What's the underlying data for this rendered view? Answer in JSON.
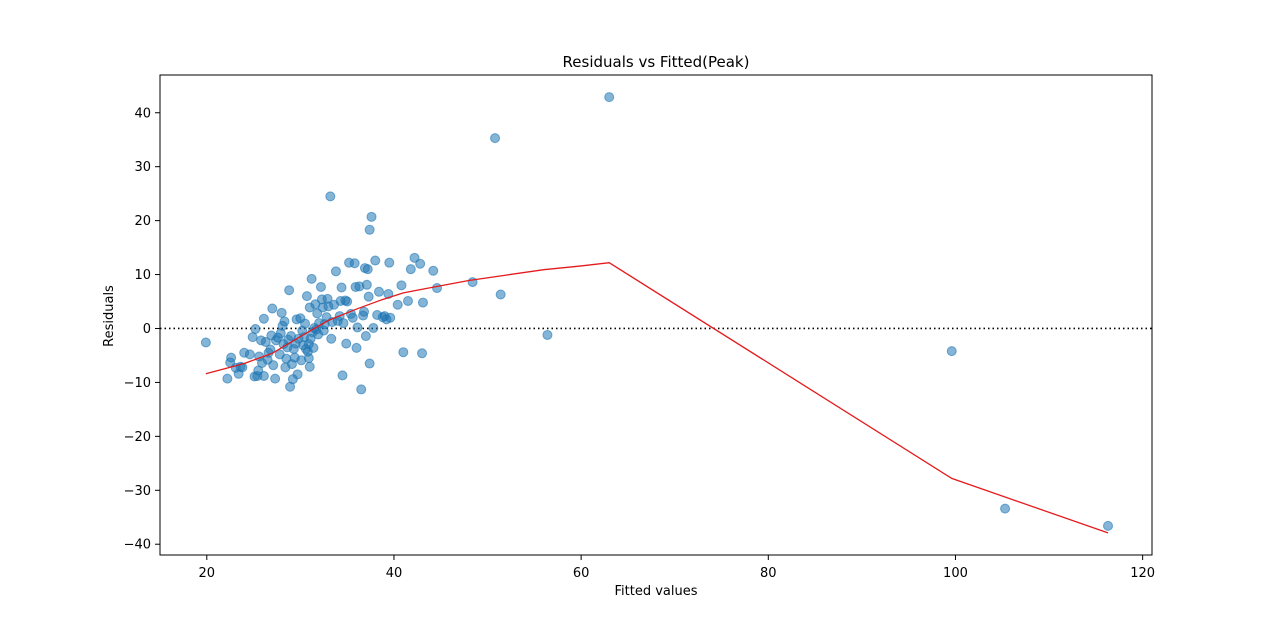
{
  "chart_data": {
    "type": "scatter",
    "title": "Residuals vs Fitted(Peak)",
    "xlabel": "Fitted values",
    "ylabel": "Residuals",
    "xlim": [
      15,
      121
    ],
    "ylim": [
      -42,
      47
    ],
    "xticks": [
      20,
      40,
      60,
      80,
      100,
      120
    ],
    "yticks": [
      -40,
      -30,
      -20,
      -10,
      0,
      10,
      20,
      30,
      40
    ],
    "grid": false,
    "reference_line": {
      "y": 0,
      "style": "dotted",
      "color": "#000000"
    },
    "colors": {
      "points": "#1f77b4",
      "smooth": "#e41a1c"
    },
    "points": [
      [
        19.9,
        -2.6
      ],
      [
        22.2,
        -9.3
      ],
      [
        22.6,
        -5.4
      ],
      [
        22.5,
        -6.3
      ],
      [
        23.1,
        -7.3
      ],
      [
        23.4,
        -8.4
      ],
      [
        23.6,
        -7.1
      ],
      [
        23.8,
        -7.2
      ],
      [
        24.0,
        -4.5
      ],
      [
        24.6,
        -4.8
      ],
      [
        24.9,
        -1.6
      ],
      [
        25.1,
        -8.9
      ],
      [
        25.2,
        -0.1
      ],
      [
        25.4,
        -8.8
      ],
      [
        25.5,
        -7.8
      ],
      [
        25.6,
        -5.2
      ],
      [
        25.8,
        -2.2
      ],
      [
        25.9,
        -6.4
      ],
      [
        26.1,
        -8.8
      ],
      [
        26.1,
        1.8
      ],
      [
        26.3,
        -2.5
      ],
      [
        26.5,
        -5.8
      ],
      [
        26.6,
        -4.5
      ],
      [
        26.8,
        -3.9
      ],
      [
        26.9,
        -1.3
      ],
      [
        27.0,
        3.7
      ],
      [
        27.1,
        -6.8
      ],
      [
        27.3,
        -9.3
      ],
      [
        27.4,
        -2.2
      ],
      [
        27.6,
        -1.7
      ],
      [
        27.8,
        -4.8
      ],
      [
        27.9,
        -0.9
      ],
      [
        28.0,
        2.9
      ],
      [
        28.1,
        0.5
      ],
      [
        28.2,
        -2.9
      ],
      [
        28.3,
        1.3
      ],
      [
        28.4,
        -7.2
      ],
      [
        28.5,
        -5.6
      ],
      [
        28.6,
        -3.5
      ],
      [
        28.7,
        -2.1
      ],
      [
        28.8,
        7.1
      ],
      [
        28.9,
        -10.8
      ],
      [
        29.0,
        -1.4
      ],
      [
        29.1,
        -6.6
      ],
      [
        29.2,
        -9.4
      ],
      [
        29.3,
        -3.8
      ],
      [
        29.4,
        -5.4
      ],
      [
        29.5,
        -2.8
      ],
      [
        29.6,
        1.7
      ],
      [
        29.7,
        -8.5
      ],
      [
        29.8,
        -1.9
      ],
      [
        30.0,
        1.9
      ],
      [
        30.1,
        -5.9
      ],
      [
        30.2,
        -0.4
      ],
      [
        30.3,
        -3.1
      ],
      [
        30.4,
        -1.6
      ],
      [
        30.5,
        0.9
      ],
      [
        30.6,
        -3.8
      ],
      [
        30.7,
        6.0
      ],
      [
        30.8,
        -4.3
      ],
      [
        30.9,
        -2.9
      ],
      [
        30.9,
        -5.5
      ],
      [
        31.0,
        -7.1
      ],
      [
        31.0,
        3.9
      ],
      [
        31.1,
        -1.9
      ],
      [
        31.2,
        9.2
      ],
      [
        31.3,
        -0.7
      ],
      [
        31.4,
        -3.6
      ],
      [
        31.5,
        0.1
      ],
      [
        31.6,
        4.5
      ],
      [
        31.7,
        -0.2
      ],
      [
        31.8,
        2.8
      ],
      [
        31.9,
        -1.1
      ],
      [
        32.0,
        1.0
      ],
      [
        32.2,
        7.7
      ],
      [
        32.3,
        5.4
      ],
      [
        32.4,
        3.9
      ],
      [
        32.5,
        -0.4
      ],
      [
        32.6,
        0.8
      ],
      [
        32.8,
        2.1
      ],
      [
        32.9,
        5.5
      ],
      [
        33.0,
        4.1
      ],
      [
        33.2,
        24.5
      ],
      [
        33.3,
        -1.9
      ],
      [
        33.4,
        1.2
      ],
      [
        33.6,
        4.4
      ],
      [
        33.8,
        10.6
      ],
      [
        34.0,
        1.4
      ],
      [
        34.2,
        2.3
      ],
      [
        34.3,
        5.1
      ],
      [
        34.4,
        7.6
      ],
      [
        34.5,
        -8.7
      ],
      [
        34.6,
        1.0
      ],
      [
        34.8,
        5.2
      ],
      [
        34.9,
        -2.8
      ],
      [
        35.0,
        5.0
      ],
      [
        35.2,
        12.2
      ],
      [
        35.4,
        2.7
      ],
      [
        35.6,
        2.0
      ],
      [
        35.8,
        12.1
      ],
      [
        35.9,
        7.7
      ],
      [
        36.0,
        -3.6
      ],
      [
        36.1,
        0.2
      ],
      [
        36.3,
        7.8
      ],
      [
        36.5,
        -11.3
      ],
      [
        36.7,
        2.4
      ],
      [
        36.8,
        3.1
      ],
      [
        36.9,
        11.2
      ],
      [
        37.0,
        -1.4
      ],
      [
        37.1,
        8.1
      ],
      [
        37.2,
        11.0
      ],
      [
        37.3,
        5.9
      ],
      [
        37.4,
        -6.5
      ],
      [
        37.4,
        18.3
      ],
      [
        37.6,
        20.7
      ],
      [
        37.8,
        0.1
      ],
      [
        38.0,
        12.6
      ],
      [
        38.2,
        2.5
      ],
      [
        38.4,
        6.8
      ],
      [
        38.8,
        2.1
      ],
      [
        39.0,
        2.3
      ],
      [
        39.2,
        1.7
      ],
      [
        39.4,
        6.4
      ],
      [
        39.5,
        12.2
      ],
      [
        39.6,
        2.0
      ],
      [
        40.4,
        4.4
      ],
      [
        40.8,
        8.0
      ],
      [
        41.0,
        -4.4
      ],
      [
        41.5,
        5.1
      ],
      [
        41.8,
        11.0
      ],
      [
        42.2,
        13.1
      ],
      [
        42.8,
        12.0
      ],
      [
        43.0,
        -4.6
      ],
      [
        43.1,
        4.8
      ],
      [
        44.2,
        10.7
      ],
      [
        44.6,
        7.5
      ],
      [
        48.4,
        8.6
      ],
      [
        50.8,
        35.3
      ],
      [
        51.4,
        6.3
      ],
      [
        56.4,
        -1.2
      ],
      [
        63.0,
        42.9
      ],
      [
        99.6,
        -4.2
      ],
      [
        105.3,
        -33.4
      ],
      [
        116.3,
        -36.6
      ]
    ],
    "smooth_line": [
      [
        19.9,
        -8.4
      ],
      [
        24.0,
        -6.5
      ],
      [
        27.0,
        -4.6
      ],
      [
        30.0,
        -1.5
      ],
      [
        33.0,
        1.5
      ],
      [
        36.0,
        3.6
      ],
      [
        38.5,
        5.2
      ],
      [
        41.0,
        6.6
      ],
      [
        44.0,
        7.6
      ],
      [
        48.0,
        8.9
      ],
      [
        52.0,
        9.9
      ],
      [
        56.0,
        10.9
      ],
      [
        60.0,
        11.6
      ],
      [
        63.0,
        12.2
      ],
      [
        99.6,
        -27.8
      ],
      [
        116.3,
        -37.9
      ]
    ]
  }
}
